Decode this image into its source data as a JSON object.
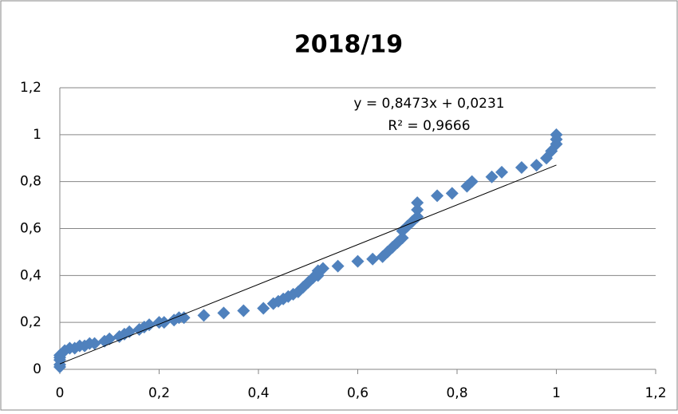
{
  "chart_data": {
    "type": "scatter",
    "title": "2018/19",
    "x": [
      0,
      0,
      0,
      0,
      0,
      0.01,
      0.02,
      0.03,
      0.04,
      0.05,
      0.06,
      0.07,
      0.09,
      0.1,
      0.12,
      0.13,
      0.14,
      0.16,
      0.17,
      0.18,
      0.2,
      0.21,
      0.23,
      0.24,
      0.25,
      0.29,
      0.33,
      0.37,
      0.41,
      0.43,
      0.44,
      0.45,
      0.46,
      0.47,
      0.48,
      0.49,
      0.5,
      0.51,
      0.52,
      0.52,
      0.53,
      0.56,
      0.6,
      0.63,
      0.65,
      0.66,
      0.67,
      0.68,
      0.69,
      0.69,
      0.7,
      0.71,
      0.72,
      0.72,
      0.72,
      0.76,
      0.79,
      0.82,
      0.83,
      0.87,
      0.89,
      0.93,
      0.96,
      0.98,
      0.99,
      1.0,
      1.0,
      1.0
    ],
    "values": [
      0.01,
      0.02,
      0.04,
      0.05,
      0.06,
      0.08,
      0.09,
      0.09,
      0.1,
      0.1,
      0.11,
      0.11,
      0.12,
      0.13,
      0.14,
      0.15,
      0.16,
      0.17,
      0.18,
      0.19,
      0.2,
      0.2,
      0.21,
      0.22,
      0.22,
      0.23,
      0.24,
      0.25,
      0.26,
      0.28,
      0.29,
      0.3,
      0.31,
      0.32,
      0.33,
      0.35,
      0.37,
      0.39,
      0.4,
      0.42,
      0.43,
      0.44,
      0.46,
      0.47,
      0.48,
      0.5,
      0.52,
      0.54,
      0.56,
      0.59,
      0.61,
      0.63,
      0.65,
      0.68,
      0.71,
      0.74,
      0.75,
      0.78,
      0.8,
      0.82,
      0.84,
      0.86,
      0.87,
      0.9,
      0.93,
      0.96,
      0.98,
      1.0
    ],
    "color": "#4f81bd",
    "trendline": {
      "slope": 0.8473,
      "intercept": 0.0231,
      "label": "y = 0,8473x + 0,0231",
      "r2_label": "R² = 0,9666"
    },
    "xlim": [
      0,
      1.2
    ],
    "ylim": [
      0,
      1.2
    ],
    "xticks": [
      0,
      {
        "value": 0.2,
        "label": "0,2"
      },
      {
        "value": 0.4,
        "label": "0,4"
      },
      {
        "value": 0.6,
        "label": "0,6"
      },
      {
        "value": 0.8,
        "label": "0,8"
      },
      1,
      {
        "value": 1.2,
        "label": "1,2"
      }
    ],
    "yticks": [
      0,
      {
        "value": 0.2,
        "label": "0,2"
      },
      {
        "value": 0.4,
        "label": "0,4"
      },
      {
        "value": 0.6,
        "label": "0,6"
      },
      {
        "value": 0.8,
        "label": "0,8"
      },
      1,
      {
        "value": 1.2,
        "label": "1,2"
      }
    ],
    "grid": true
  }
}
